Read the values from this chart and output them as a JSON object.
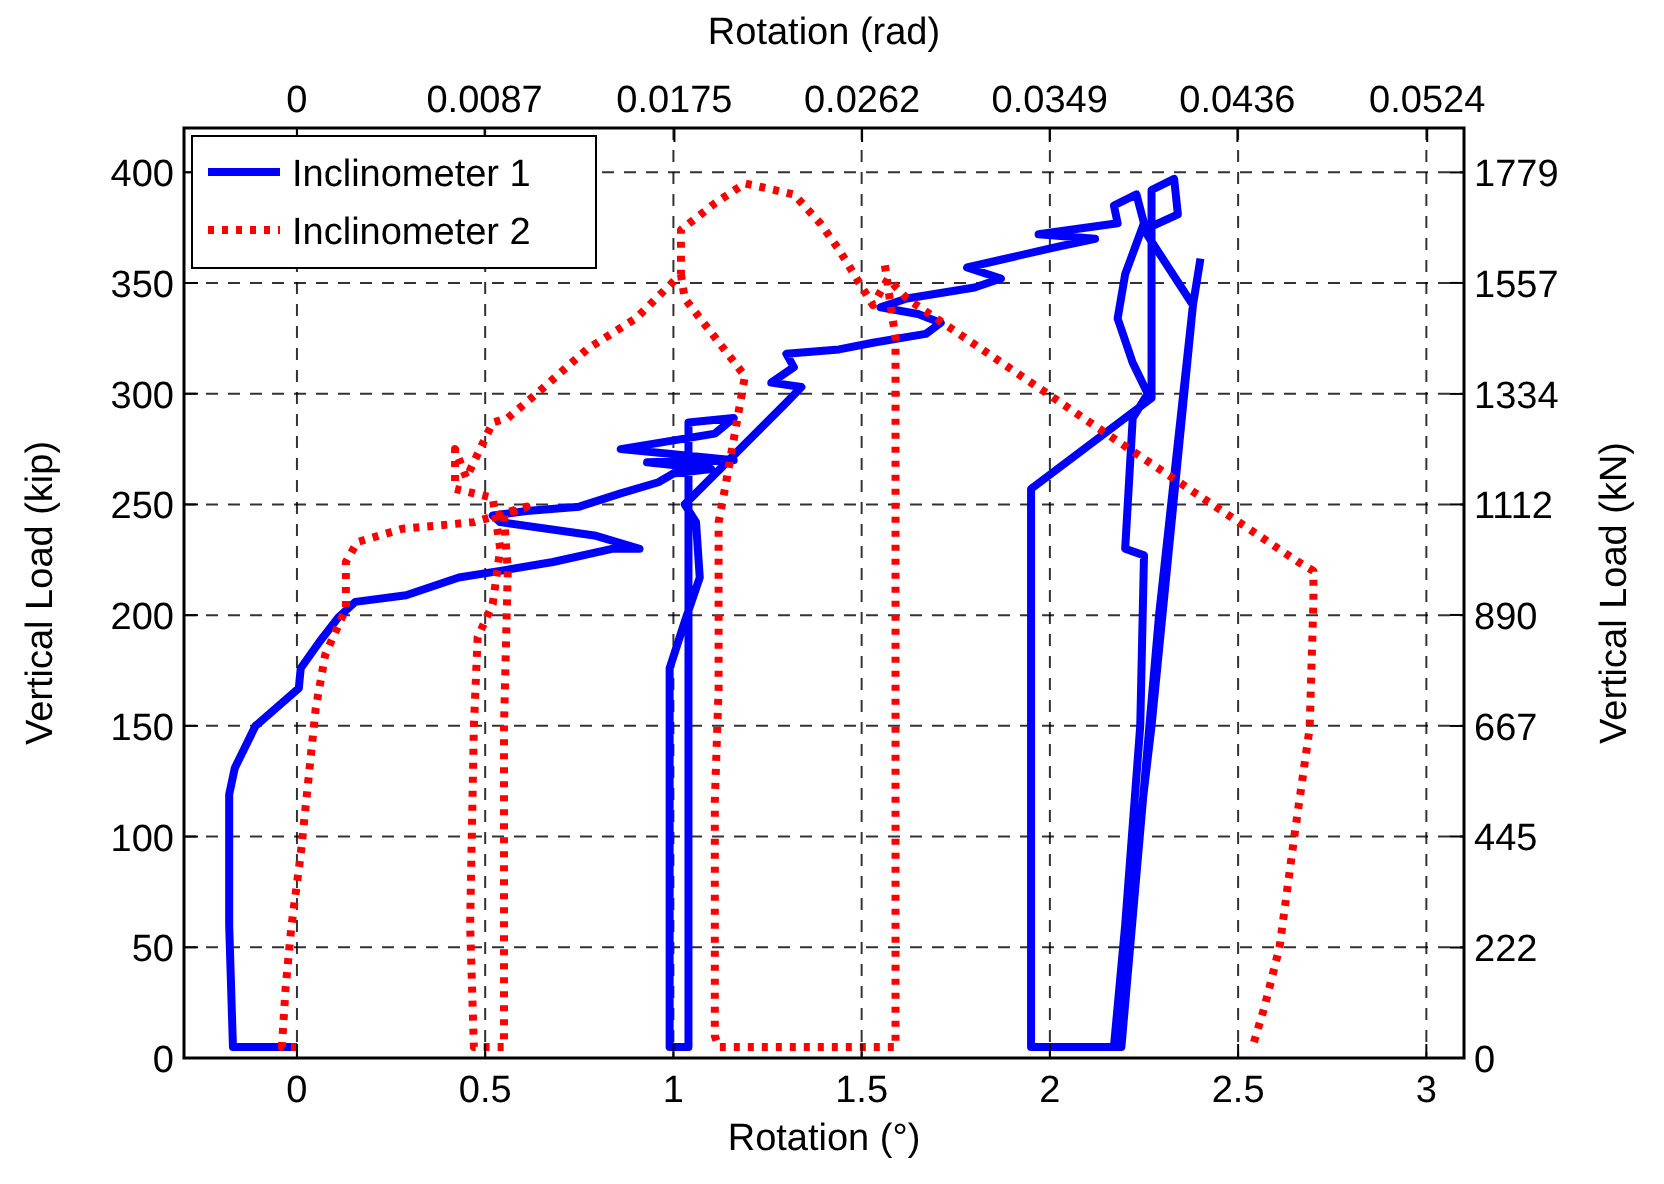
{
  "chart_data": {
    "type": "line",
    "xlabel": "Rotation (°)",
    "ylabel": "Vertical Load (kip)",
    "x2label": "Rotation (rad)",
    "y2label": "Vertical Load (kN)",
    "xlim": [
      -0.3,
      3.1
    ],
    "xticks": [
      0,
      0.5,
      1,
      1.5,
      2,
      2.5,
      3
    ],
    "x2lim": [
      -0.005236,
      0.054105
    ],
    "x2ticks": [
      0,
      0.0087,
      0.0175,
      0.0262,
      0.0349,
      0.0436,
      0.0524
    ],
    "ylim": [
      0,
      420
    ],
    "yticks": [
      0,
      50,
      100,
      150,
      200,
      250,
      300,
      350,
      400
    ],
    "y2lim": [
      0,
      1868.2
    ],
    "y2ticks": [
      0,
      222,
      445,
      667,
      890,
      1112,
      1334,
      1557,
      1779
    ],
    "grid": true,
    "legend": "top left",
    "series": [
      {
        "name": "Inclinometer 1",
        "color": "#0000ff",
        "line_style": "solid",
        "x": [
          0,
          -0.17,
          -0.18,
          -0.18,
          -0.165,
          -0.11,
          0.005,
          0.01,
          0.06,
          0.11,
          0.155,
          0.29,
          0.43,
          0.54,
          0.68,
          0.84,
          0.91,
          0.79,
          0.54,
          0.52,
          0.61,
          0.75,
          0.86,
          0.96,
          1.0,
          1.1,
          0.93,
          1.16,
          0.86,
          1.11,
          1.16,
          1.04,
          1.04,
          1.04,
          1.04,
          0.99,
          0.99,
          0.99,
          1.03,
          1.07,
          1.06,
          1.03,
          1.3,
          1.34,
          1.26,
          1.32,
          1.3,
          1.44,
          1.53,
          1.67,
          1.71,
          1.65,
          1.55,
          1.62,
          1.8,
          1.87,
          1.78,
          2.01,
          2.12,
          1.97,
          2.18,
          2.17,
          2.23,
          2.25,
          2.2,
          2.18,
          2.22,
          2.26,
          2.22,
          2.2,
          2.25,
          2.24,
          2.2,
          2.17,
          1.95,
          1.95,
          2.27,
          2.27,
          2.33,
          2.34,
          2.25,
          2.38,
          2.27,
          2.17,
          2.19,
          2.29,
          2.38,
          2.4
        ],
        "values": [
          5,
          5,
          60,
          119,
          131,
          150,
          167,
          176,
          188,
          199,
          206,
          209,
          217,
          220,
          224,
          230,
          230,
          236,
          242,
          245,
          247,
          249,
          255,
          260,
          264,
          266,
          269,
          270,
          275,
          282,
          289,
          287,
          200,
          100,
          5,
          5,
          100,
          176,
          197,
          217,
          242,
          250,
          296,
          303,
          305,
          312,
          318,
          320,
          323,
          327,
          332,
          336,
          339,
          343,
          348,
          352,
          357,
          366,
          370,
          372,
          377,
          385,
          390,
          377,
          354,
          334,
          314,
          300,
          289,
          230,
          227,
          150,
          60,
          5,
          5,
          257,
          298,
          392,
          397,
          381,
          374,
          340,
          150,
          5,
          5,
          200,
          340,
          361
        ]
      },
      {
        "name": "Inclinometer 2",
        "color": "#ff0000",
        "line_style": "dotted",
        "x": [
          0,
          -0.04,
          -0.03,
          -0.015,
          0.01,
          0.03,
          0.05,
          0.075,
          0.13,
          0.13,
          0.16,
          0.28,
          0.47,
          0.61,
          0.55,
          0.56,
          0.55,
          0.55,
          0.55,
          0.47,
          0.46,
          0.47,
          0.48,
          0.52,
          0.54,
          0.52,
          0.42,
          0.42,
          0.45,
          0.52,
          0.56,
          0.65,
          0.77,
          0.9,
          1.02,
          1.02,
          1.11,
          1.19,
          1.32,
          1.39,
          1.44,
          1.53,
          1.57,
          1.62,
          2.15,
          2.66,
          2.7,
          2.7,
          2.69,
          2.65,
          2.61,
          2.57,
          2.54
        ],
        "values": [
          5,
          5,
          32,
          59,
          92,
          125,
          158,
          182,
          203,
          224,
          233,
          239,
          242,
          249,
          245,
          220,
          150,
          60,
          5,
          5,
          60,
          150,
          190,
          205,
          230,
          253,
          257,
          275,
          262,
          287,
          289,
          302,
          320,
          334,
          354,
          374,
          386,
          395,
          390,
          377,
          365,
          340,
          352,
          343,
          282,
          224,
          220,
          206,
          149,
          101,
          50,
          23,
          6
        ]
      },
      {
        "color": "#ff0000",
        "line_style": "dotted",
        "x": [
          1.02,
          1.03,
          1.19,
          1.14,
          1.12,
          1.12,
          1.11,
          1.11,
          1.12,
          1.44,
          1.59,
          1.59,
          1.59,
          1.56
        ],
        "values": [
          354,
          343,
          308,
          260,
          242,
          167,
          116,
          10,
          5,
          5,
          5,
          200,
          325,
          360
        ]
      }
    ]
  }
}
